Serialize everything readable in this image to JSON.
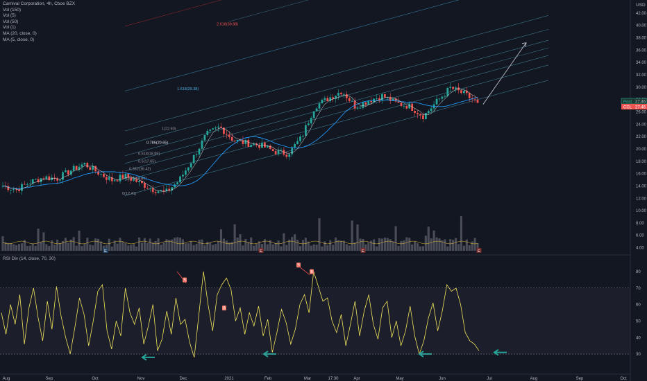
{
  "legend": {
    "title": "Carnival Corporation, 4h, Cboe BZX",
    "lines": [
      "Vol (150)",
      "Vol (5)",
      "Vol (50)",
      "Vol (1)",
      "MA (20, close, 0)",
      "MA (5, close, 0)"
    ]
  },
  "rsi_legend": "RSI Div (14, close, 70, 30)",
  "price_tags": {
    "high_label": "Post",
    "high_value": "27.46",
    "low_label": "CCL",
    "low_value": "27.46"
  },
  "colors": {
    "background": "#131722",
    "up": "#26a69a",
    "down": "#ef5350",
    "rsi_line": "#f3e55c",
    "ma_line": "#2196f3",
    "fib_line": "#4a90a8",
    "fib_red": "#9c2b2b",
    "arrow": "#26a69a",
    "grid": "#1e222d",
    "text": "#b2b5be"
  },
  "chart_data": [
    {
      "type": "candlestick",
      "title": "Carnival Corporation, 4h, Cboe BZX",
      "currency": "USD",
      "y_ticks": [
        4.0,
        6.0,
        8.0,
        10.0,
        12.0,
        14.0,
        16.0,
        18.0,
        20.0,
        22.0,
        24.0,
        26.0,
        28.0,
        30.0,
        32.0,
        34.0,
        36.0,
        38.0,
        40.0,
        42.0
      ],
      "y_unit": "USD",
      "x_ticks": [
        "Aug",
        "Sep",
        "Oct",
        "Nov",
        "Dec",
        "2021",
        "Feb",
        "Mar",
        "17:30",
        "Apr",
        "May",
        "Jun",
        "Jul",
        "Aug",
        "Sep",
        "Oct"
      ],
      "close_path": [
        [
          "Aug",
          14.0
        ],
        [
          "Aug",
          13.4
        ],
        [
          "Aug",
          14.6
        ],
        [
          "Aug",
          15.4
        ],
        [
          "Sep",
          15.2
        ],
        [
          "Sep",
          16.5
        ],
        [
          "Sep",
          17.6
        ],
        [
          "Sep",
          16.2
        ],
        [
          "Oct",
          14.9
        ],
        [
          "Oct",
          15.6
        ],
        [
          "Oct",
          14.6
        ],
        [
          "Oct",
          13.5
        ],
        [
          "Nov",
          12.9
        ],
        [
          "Nov",
          14.9
        ],
        [
          "Nov",
          18.4
        ],
        [
          "Nov",
          22.3
        ],
        [
          "Dec",
          23.6
        ],
        [
          "Dec",
          21.4
        ],
        [
          "Dec",
          20.9
        ],
        [
          "Dec",
          20.6
        ],
        [
          "2021",
          19.6
        ],
        [
          "2021",
          19.2
        ],
        [
          "Feb",
          21.8
        ],
        [
          "Feb",
          26.9
        ],
        [
          "Mar",
          28.2
        ],
        [
          "Mar",
          29.4
        ],
        [
          "Mar",
          26.8
        ],
        [
          "Apr",
          27.9
        ],
        [
          "Apr",
          28.6
        ],
        [
          "Apr",
          27.4
        ],
        [
          "May",
          26.9
        ],
        [
          "May",
          25.3
        ],
        [
          "May",
          27.7
        ],
        [
          "Jun",
          29.9
        ],
        [
          "Jun",
          28.9
        ],
        [
          "Jun",
          27.46
        ]
      ],
      "last_price": 27.46,
      "projection_target": 37.2,
      "fib_levels": [
        {
          "ratio": "0",
          "price": 12.41,
          "label": "0(12.41)"
        },
        {
          "ratio": "0.236",
          "price": 14.88,
          "label": "0.236(14.88)"
        },
        {
          "ratio": "0.382",
          "price": 16.42,
          "label": "0.382(16.42)"
        },
        {
          "ratio": "0.5",
          "price": 17.65,
          "label": "0.5(17.65)"
        },
        {
          "ratio": "0.618",
          "price": 18.89,
          "label": "0.618(18.89)"
        },
        {
          "ratio": "0.786",
          "price": 20.65,
          "label": "0.786(20.65)"
        },
        {
          "ratio": "1",
          "price": 22.9,
          "label": "1(22.90)"
        },
        {
          "ratio": "1.618",
          "price": 29.38,
          "label": "1.618(29.38)"
        },
        {
          "ratio": "2.618",
          "price": 39.88,
          "label": "2.618(39.88)"
        }
      ],
      "earnings_markers": [
        "E",
        "E",
        "E",
        "E"
      ],
      "grid": false
    },
    {
      "type": "line",
      "title": "RSI Div (14, close, 70, 30)",
      "y_ticks": [
        30,
        40,
        50,
        60,
        70,
        80
      ],
      "bands": {
        "upper": 70,
        "lower": 30
      },
      "values": [
        55,
        42,
        60,
        48,
        66,
        36,
        58,
        70,
        52,
        38,
        62,
        45,
        71,
        53,
        40,
        30,
        46,
        64,
        54,
        35,
        50,
        68,
        72,
        44,
        33,
        50,
        41,
        70,
        55,
        48,
        58,
        36,
        47,
        60,
        32,
        39,
        56,
        42,
        64,
        48,
        51,
        37,
        28,
        54,
        80,
        60,
        44,
        66,
        72,
        76,
        69,
        50,
        58,
        42,
        55,
        47,
        59,
        41,
        51,
        31,
        43,
        57,
        49,
        36,
        45,
        60,
        66,
        55,
        80,
        71,
        62,
        64,
        50,
        43,
        54,
        35,
        48,
        62,
        41,
        56,
        66,
        48,
        39,
        58,
        62,
        40,
        50,
        35,
        44,
        59,
        41,
        30,
        38,
        52,
        61,
        44,
        56,
        72,
        68,
        70,
        60,
        43,
        38,
        36,
        32
      ],
      "divergence_markers": [
        "B",
        "B",
        "B",
        "B"
      ],
      "arrows_at_level": 30
    }
  ]
}
